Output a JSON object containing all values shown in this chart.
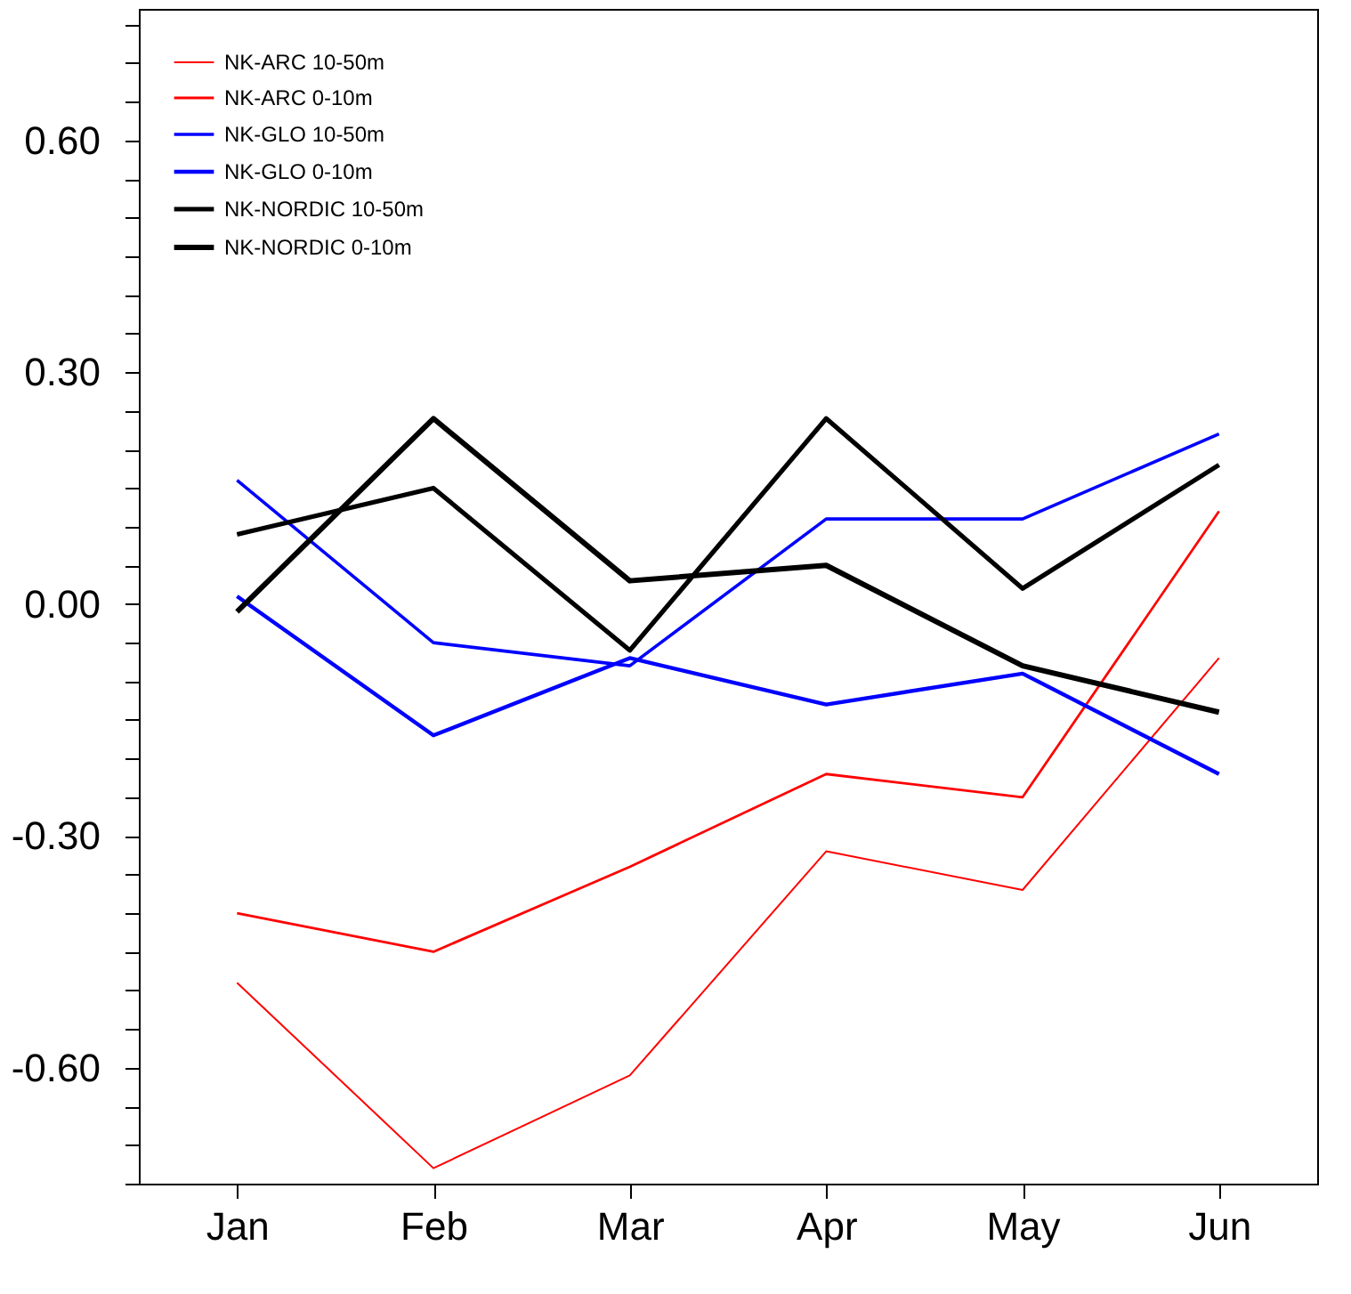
{
  "chart_data": {
    "type": "line",
    "categories": [
      "Jan",
      "Feb",
      "Mar",
      "Apr",
      "May",
      "Jun"
    ],
    "series": [
      {
        "name": "NK-ARC 10-50m",
        "color": "#ff0000",
        "values": [
          -0.49,
          -0.73,
          -0.61,
          -0.32,
          -0.37,
          -0.07
        ]
      },
      {
        "name": "NK-ARC 0-10m",
        "color": "#ff0000",
        "values": [
          -0.4,
          -0.45,
          -0.34,
          -0.22,
          -0.25,
          0.12
        ]
      },
      {
        "name": "NK-GLO 10-50m",
        "color": "#0000ff",
        "values": [
          0.16,
          -0.05,
          -0.08,
          0.11,
          0.11,
          0.22
        ]
      },
      {
        "name": "NK-GLO 0-10m",
        "color": "#0000ff",
        "values": [
          0.01,
          -0.17,
          -0.07,
          -0.13,
          -0.09,
          -0.22
        ]
      },
      {
        "name": "NK-NORDIC 10-50m",
        "color": "#000000",
        "values": [
          0.09,
          0.15,
          -0.06,
          0.24,
          0.02,
          0.18
        ]
      },
      {
        "name": "NK-NORDIC 0-10m",
        "color": "#000000",
        "values": [
          -0.01,
          0.24,
          0.03,
          0.05,
          -0.08,
          -0.14
        ]
      }
    ],
    "ylim": [
      -0.75,
      0.77
    ],
    "yticks": [
      {
        "value": -0.75,
        "label": null
      },
      {
        "value": -0.7,
        "label": null
      },
      {
        "value": -0.65,
        "label": null
      },
      {
        "value": -0.6,
        "label": "-0.60"
      },
      {
        "value": -0.55,
        "label": null
      },
      {
        "value": -0.5,
        "label": null
      },
      {
        "value": -0.45,
        "label": null
      },
      {
        "value": -0.4,
        "label": null
      },
      {
        "value": -0.35,
        "label": null
      },
      {
        "value": -0.3,
        "label": "-0.30"
      },
      {
        "value": -0.25,
        "label": null
      },
      {
        "value": -0.2,
        "label": null
      },
      {
        "value": -0.15,
        "label": null
      },
      {
        "value": -0.1,
        "label": null
      },
      {
        "value": -0.05,
        "label": null
      },
      {
        "value": 0,
        "label": "0.00"
      },
      {
        "value": 0.05,
        "label": null
      },
      {
        "value": 0.1,
        "label": null
      },
      {
        "value": 0.15,
        "label": null
      },
      {
        "value": 0.2,
        "label": null
      },
      {
        "value": 0.25,
        "label": null
      },
      {
        "value": 0.3,
        "label": "0.30"
      },
      {
        "value": 0.35,
        "label": null
      },
      {
        "value": 0.4,
        "label": null
      },
      {
        "value": 0.45,
        "label": null
      },
      {
        "value": 0.5,
        "label": null
      },
      {
        "value": 0.55,
        "label": null
      },
      {
        "value": 0.6,
        "label": "0.60"
      },
      {
        "value": 0.65,
        "label": null
      },
      {
        "value": 0.7,
        "label": null
      },
      {
        "value": 0.75,
        "label": null
      }
    ],
    "grid": false,
    "legend": "top left",
    "marker": "none",
    "line_style": "solid"
  }
}
